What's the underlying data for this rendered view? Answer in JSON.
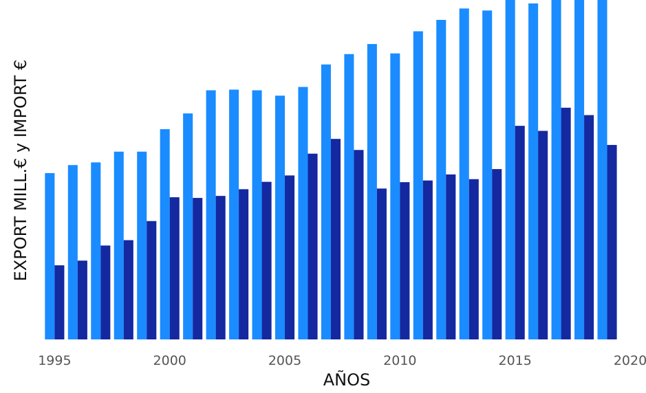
{
  "chart_data": {
    "type": "bar",
    "title": "",
    "xlabel": "AÑOS",
    "ylabel": "EXPORT MILL.€ y IMPORT €",
    "x": [
      1995,
      1996,
      1997,
      1998,
      1999,
      2000,
      2001,
      2002,
      2003,
      2004,
      2005,
      2006,
      2007,
      2008,
      2009,
      2010,
      2011,
      2012,
      2013,
      2014,
      2015,
      2016,
      2017,
      2018,
      2019
    ],
    "x_ticks": [
      "1995",
      "2000",
      "2005",
      "2010",
      "2015",
      "2020"
    ],
    "x_range": [
      1994.6,
      2020
    ],
    "ylim": [
      0,
      100
    ],
    "y_ticks_visible": false,
    "grid": false,
    "legend": "none",
    "series": [
      {
        "color": "#1a8cff",
        "values": [
          49.6,
          52.0,
          52.8,
          56.0,
          56.0,
          62.7,
          67.4,
          74.3,
          74.5,
          74.3,
          72.7,
          75.3,
          82.0,
          85.1,
          88.1,
          85.3,
          91.9,
          95.3,
          98.7,
          98.1,
          102.0,
          100.2,
          103.0,
          103.5,
          104.0
        ]
      },
      {
        "color": "#1428a0",
        "values": [
          22.1,
          23.5,
          28.0,
          29.6,
          35.3,
          42.4,
          42.2,
          42.8,
          44.8,
          47.0,
          48.9,
          55.4,
          59.8,
          56.5,
          45.0,
          46.9,
          47.4,
          49.2,
          47.8,
          50.8,
          63.7,
          62.2,
          69.1,
          66.9,
          58.0
        ]
      }
    ]
  }
}
